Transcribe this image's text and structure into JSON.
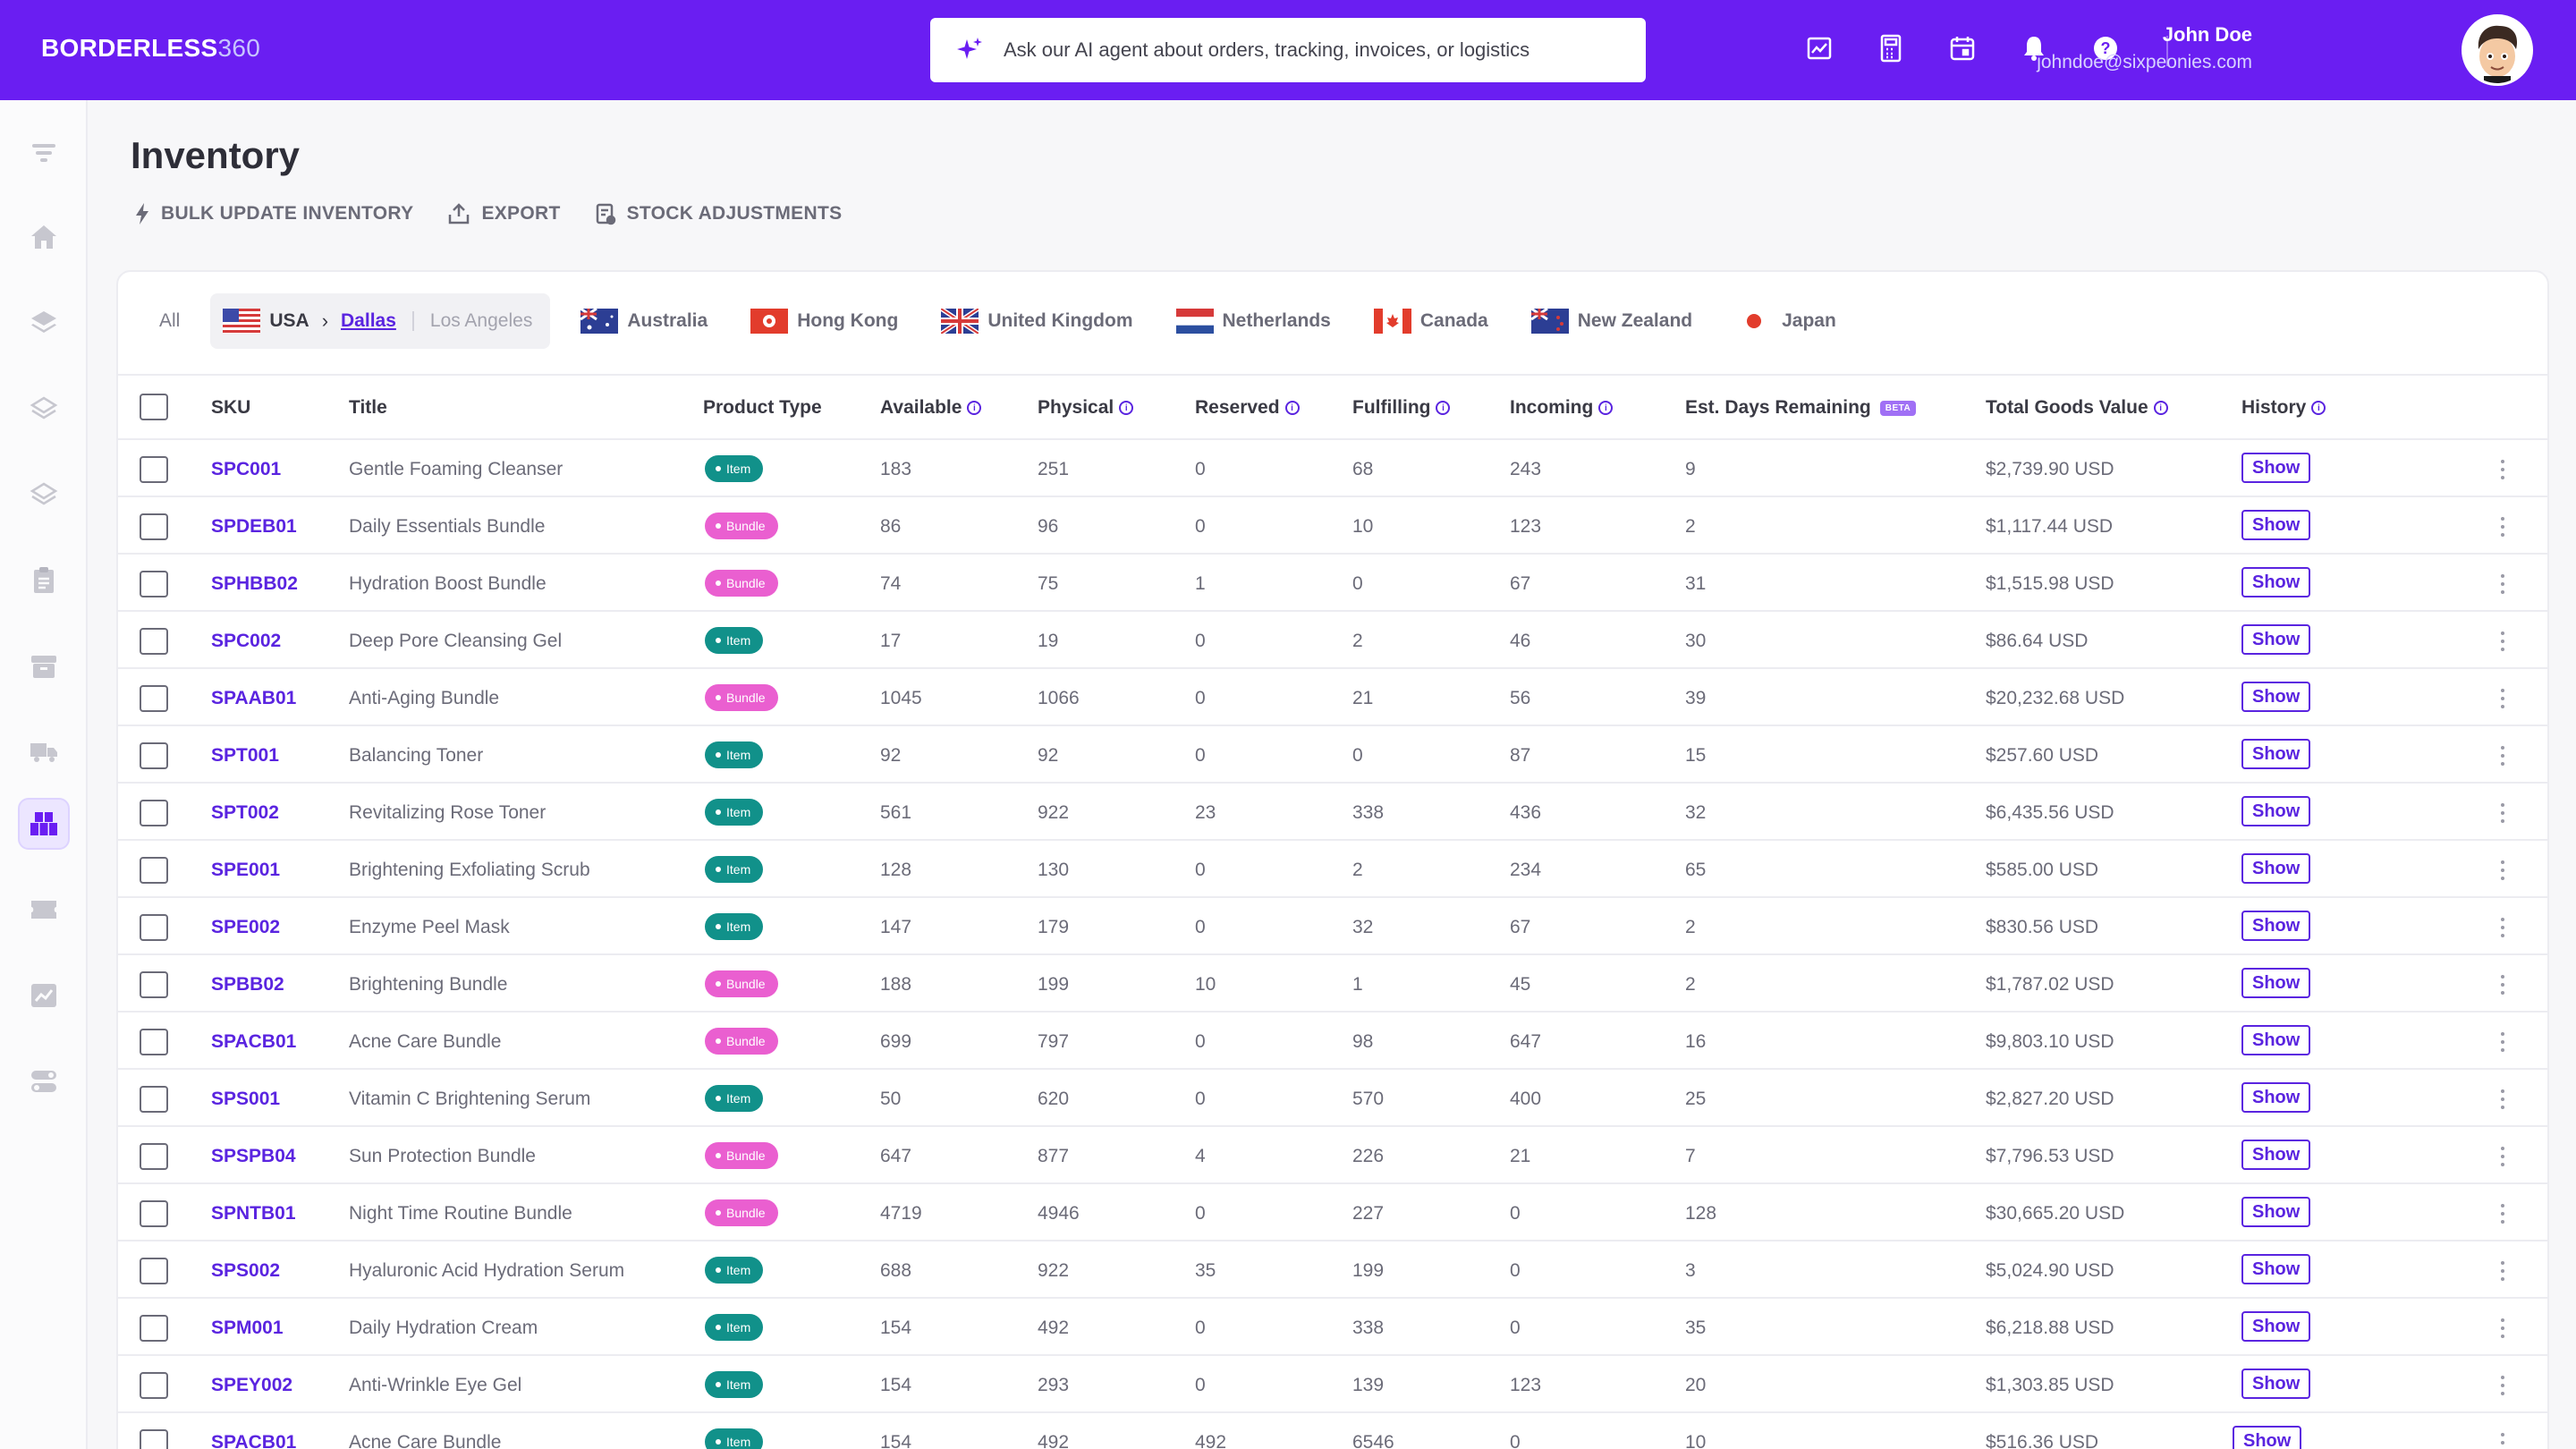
{
  "brand": {
    "name": "BORDERLESS",
    "suffix": "360"
  },
  "search": {
    "placeholder": "Ask our AI agent about orders, tracking, invoices, or logistics"
  },
  "header_icons": [
    "reports-icon",
    "calculator-icon",
    "calendar-icon",
    "bell-icon",
    "help-icon"
  ],
  "user": {
    "name": "John Doe",
    "email": "johndoe@sixpeonies.com"
  },
  "page": {
    "title": "Inventory"
  },
  "actions": [
    {
      "label": "BULK UPDATE INVENTORY",
      "icon": "bolt-icon"
    },
    {
      "label": "EXPORT",
      "icon": "export-icon"
    },
    {
      "label": "STOCK ADJUSTMENTS",
      "icon": "adjustments-icon"
    }
  ],
  "locations": {
    "all": "All",
    "usa": {
      "country": "USA",
      "city_selected": "Dallas",
      "city_other": "Los Angeles"
    },
    "others": [
      "Australia",
      "Hong Kong",
      "United Kingdom",
      "Netherlands",
      "Canada",
      "New Zealand",
      "Japan"
    ]
  },
  "columns": {
    "sku": "SKU",
    "title": "Title",
    "product_type": "Product Type",
    "available": "Available",
    "physical": "Physical",
    "reserved": "Reserved",
    "fulfilling": "Fulfilling",
    "incoming": "Incoming",
    "est_days": "Est. Days Remaining",
    "beta": "BETA",
    "total_value": "Total Goods Value",
    "history": "History"
  },
  "show_label": "Show",
  "rows": [
    {
      "sku": "SPC001",
      "title": "Gentle Foaming Cleanser",
      "type": "Item",
      "available": "183",
      "physical": "251",
      "reserved": "0",
      "fulfilling": "68",
      "incoming": "243",
      "days": "9",
      "value": "$2,739.90 USD"
    },
    {
      "sku": "SPDEB01",
      "title": "Daily Essentials Bundle",
      "type": "Bundle",
      "available": "86",
      "physical": "96",
      "reserved": "0",
      "fulfilling": "10",
      "incoming": "123",
      "days": "2",
      "value": "$1,117.44 USD"
    },
    {
      "sku": "SPHBB02",
      "title": "Hydration Boost Bundle",
      "type": "Bundle",
      "available": "74",
      "physical": "75",
      "reserved": "1",
      "fulfilling": "0",
      "incoming": "67",
      "days": "31",
      "value": "$1,515.98 USD"
    },
    {
      "sku": "SPC002",
      "title": "Deep Pore Cleansing Gel",
      "type": "Item",
      "available": "17",
      "physical": "19",
      "reserved": "0",
      "fulfilling": "2",
      "incoming": "46",
      "days": "30",
      "value": "$86.64 USD"
    },
    {
      "sku": "SPAAB01",
      "title": "Anti-Aging Bundle",
      "type": "Bundle",
      "available": "1045",
      "physical": "1066",
      "reserved": "0",
      "fulfilling": "21",
      "incoming": "56",
      "days": "39",
      "value": "$20,232.68 USD"
    },
    {
      "sku": "SPT001",
      "title": "Balancing Toner",
      "type": "Item",
      "available": "92",
      "physical": "92",
      "reserved": "0",
      "fulfilling": "0",
      "incoming": "87",
      "days": "15",
      "value": "$257.60 USD"
    },
    {
      "sku": "SPT002",
      "title": "Revitalizing Rose Toner",
      "type": "Item",
      "available": "561",
      "physical": "922",
      "reserved": "23",
      "fulfilling": "338",
      "incoming": "436",
      "days": "32",
      "value": "$6,435.56 USD"
    },
    {
      "sku": "SPE001",
      "title": "Brightening Exfoliating Scrub",
      "type": "Item",
      "available": "128",
      "physical": "130",
      "reserved": "0",
      "fulfilling": "2",
      "incoming": "234",
      "days": "65",
      "value": "$585.00 USD"
    },
    {
      "sku": "SPE002",
      "title": "Enzyme Peel Mask",
      "type": "Item",
      "available": "147",
      "physical": "179",
      "reserved": "0",
      "fulfilling": "32",
      "incoming": "67",
      "days": "2",
      "value": "$830.56 USD"
    },
    {
      "sku": "SPBB02",
      "title": "Brightening Bundle",
      "type": "Bundle",
      "available": "188",
      "physical": "199",
      "reserved": "10",
      "fulfilling": "1",
      "incoming": "45",
      "days": "2",
      "value": "$1,787.02 USD"
    },
    {
      "sku": "SPACB01",
      "title": "Acne Care Bundle",
      "type": "Bundle",
      "available": "699",
      "physical": "797",
      "reserved": "0",
      "fulfilling": "98",
      "incoming": "647",
      "days": "16",
      "value": "$9,803.10 USD"
    },
    {
      "sku": "SPS001",
      "title": "Vitamin C Brightening Serum",
      "type": "Item",
      "available": "50",
      "physical": "620",
      "reserved": "0",
      "fulfilling": "570",
      "incoming": "400",
      "days": "25",
      "value": "$2,827.20 USD"
    },
    {
      "sku": "SPSPB04",
      "title": "Sun Protection Bundle",
      "type": "Bundle",
      "available": "647",
      "physical": "877",
      "reserved": "4",
      "fulfilling": "226",
      "incoming": "21",
      "days": "7",
      "value": "$7,796.53 USD"
    },
    {
      "sku": "SPNTB01",
      "title": "Night Time Routine Bundle",
      "type": "Bundle",
      "available": "4719",
      "physical": "4946",
      "reserved": "0",
      "fulfilling": "227",
      "incoming": "0",
      "days": "128",
      "value": "$30,665.20 USD"
    },
    {
      "sku": "SPS002",
      "title": "Hyaluronic Acid Hydration Serum",
      "type": "Item",
      "available": "688",
      "physical": "922",
      "reserved": "35",
      "fulfilling": "199",
      "incoming": "0",
      "days": "3",
      "value": "$5,024.90 USD"
    },
    {
      "sku": "SPM001",
      "title": "Daily Hydration Cream",
      "type": "Item",
      "available": "154",
      "physical": "492",
      "reserved": "0",
      "fulfilling": "338",
      "incoming": "0",
      "days": "35",
      "value": "$6,218.88 USD"
    },
    {
      "sku": "SPEY002",
      "title": "Anti-Wrinkle Eye Gel",
      "type": "Item",
      "available": "154",
      "physical": "293",
      "reserved": "0",
      "fulfilling": "139",
      "incoming": "123",
      "days": "20",
      "value": "$1,303.85 USD"
    },
    {
      "sku": "SPACB01",
      "title": "Acne Care Bundle",
      "type": "Item",
      "available": "154",
      "physical": "492",
      "reserved": "492",
      "fulfilling": "6546",
      "incoming": "0",
      "days": "10",
      "value": "$516.36 USD"
    }
  ],
  "colors": {
    "accent": "#6a1ef2",
    "sku": "#5a24e0",
    "item_badge": "#11918a",
    "bundle_badge": "#ea5fd0"
  }
}
